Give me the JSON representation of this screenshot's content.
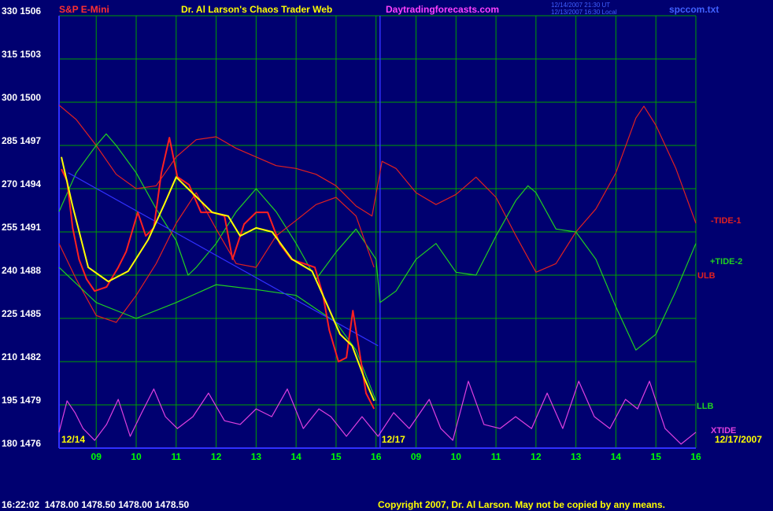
{
  "chart_data": {
    "type": "line",
    "title": "S&P E-Mini",
    "subtitle": "Dr. Al Larson's Chaos Trader Web",
    "site": "Daytradingforecasts.com",
    "timestamps": [
      "12/14/2007 21:30 UT",
      "12/13/2007 16:30 Local"
    ],
    "file": "spccom.txt",
    "status": "16:22:02  1478.00 1478.50 1478.00 1478.50",
    "copyright": "Copyright 2007, Dr. Al Larson. May not be copied by any means.",
    "date_labels": [
      {
        "value": 0.07,
        "label": "12/14"
      },
      {
        "value": 8.1,
        "label": "12/17"
      },
      {
        "value": 16,
        "label": "12/17/2007"
      }
    ],
    "xlim": [
      0.07,
      16
    ],
    "ylim": [
      180,
      330
    ],
    "grid": true,
    "xticks": [
      {
        "value": 1,
        "label": "09"
      },
      {
        "value": 2,
        "label": "10"
      },
      {
        "value": 3,
        "label": "11"
      },
      {
        "value": 4,
        "label": "12"
      },
      {
        "value": 5,
        "label": "13"
      },
      {
        "value": 6,
        "label": "14"
      },
      {
        "value": 7,
        "label": "15"
      },
      {
        "value": 8,
        "label": "16"
      },
      {
        "value": 9,
        "label": "09"
      },
      {
        "value": 10,
        "label": "10"
      },
      {
        "value": 11,
        "label": "11"
      },
      {
        "value": 12,
        "label": "12"
      },
      {
        "value": 13,
        "label": "13"
      },
      {
        "value": 14,
        "label": "14"
      },
      {
        "value": 15,
        "label": "15"
      },
      {
        "value": 16,
        "label": "16"
      }
    ],
    "yticks": [
      {
        "value": 180,
        "label": "180 1476"
      },
      {
        "value": 195,
        "label": "195 1479"
      },
      {
        "value": 210,
        "label": "210 1482"
      },
      {
        "value": 225,
        "label": "225 1485"
      },
      {
        "value": 240,
        "label": "240 1488"
      },
      {
        "value": 255,
        "label": "255 1491"
      },
      {
        "value": 270,
        "label": "270 1494"
      },
      {
        "value": 285,
        "label": "285 1497"
      },
      {
        "value": 300,
        "label": "300 1500"
      },
      {
        "value": 315,
        "label": "315 1503"
      },
      {
        "value": 330,
        "label": "330 1506"
      }
    ],
    "divider_x": 8.1,
    "series": [
      {
        "name": "-TIDE-1",
        "color": "#e02020",
        "x": [
          0.07,
          0.5,
          1,
          1.5,
          2,
          2.5,
          3,
          3.5,
          4,
          4.5,
          5,
          5.5,
          6,
          6.5,
          7,
          7.5,
          7.9,
          8.15,
          8.5,
          9,
          9.5,
          10,
          10.5,
          11,
          11.5,
          12,
          12.5,
          13,
          13.5,
          14,
          14.5,
          14.7,
          15,
          15.5,
          16
        ],
        "values": [
          299,
          294,
          285,
          275,
          270,
          271,
          281,
          287,
          288,
          284,
          281,
          278,
          277,
          275,
          271,
          264,
          260.5,
          279.5,
          277,
          268.6,
          264.5,
          268,
          274,
          267,
          253.6,
          241,
          244,
          255,
          263,
          275.5,
          294.5,
          298.6,
          292,
          277,
          258
        ]
      },
      {
        "name": "+TIDE-2",
        "color": "#20d020",
        "x": [
          0.07,
          0.5,
          1,
          1.25,
          1.5,
          2,
          2.5,
          3,
          3.3,
          3.5,
          4,
          4.5,
          5,
          5.5,
          6,
          6.5,
          7,
          7.5,
          8,
          8.1,
          8.5,
          9,
          9.5,
          10,
          10.5,
          11,
          11.5,
          11.8,
          12,
          12.5,
          13,
          13.5,
          14,
          14.5,
          15,
          15.5,
          16
        ],
        "values": [
          262,
          275.5,
          285,
          289,
          285,
          275.5,
          263,
          252,
          240,
          242.7,
          251,
          262,
          270,
          262,
          251,
          238.6,
          248,
          256,
          245.5,
          230.5,
          234.5,
          245.5,
          251,
          241,
          240,
          253.6,
          266,
          271,
          268.6,
          256,
          255,
          245.5,
          229,
          214,
          219.5,
          234.5,
          251
        ]
      },
      {
        "name": "ULB",
        "color": "#e02020",
        "x": [
          0.07,
          0.5,
          1,
          1.5,
          2,
          2.5,
          3,
          3.5,
          4,
          4.5,
          5,
          5.5,
          6,
          6.5,
          7,
          7.5,
          7.95
        ],
        "values": [
          251,
          238.6,
          226,
          223.6,
          233,
          244,
          258,
          268.6,
          256,
          244,
          242.7,
          253.6,
          259,
          264.5,
          267,
          260.5,
          242.7
        ]
      },
      {
        "name": "LLB",
        "color": "#20d020",
        "x": [
          0.07,
          1,
          2,
          3,
          4,
          5,
          6,
          7,
          7.5,
          8
        ],
        "values": [
          242.7,
          230.5,
          225,
          230.5,
          236.7,
          235,
          233,
          223.6,
          214,
          196.4
        ]
      },
      {
        "name": "XTIDE",
        "color": "#e040e0",
        "x": [
          0.07,
          0.27,
          0.47,
          0.67,
          0.96,
          1.26,
          1.55,
          1.85,
          2.14,
          2.44,
          2.73,
          3.03,
          3.42,
          3.81,
          4.21,
          4.6,
          5,
          5.39,
          5.78,
          6.18,
          6.57,
          6.87,
          7.26,
          7.65,
          8.05,
          8.44,
          8.83,
          9.33,
          9.62,
          9.92,
          10.31,
          10.7,
          11.1,
          11.49,
          11.89,
          12.28,
          12.67,
          13.07,
          13.46,
          13.85,
          14.24,
          14.54,
          14.84,
          15.23,
          15.63,
          16
        ],
        "values": [
          185.5,
          196.4,
          192.3,
          186.8,
          182.7,
          188.2,
          196.9,
          184.1,
          192.3,
          200.5,
          190.9,
          186.8,
          190.9,
          199.1,
          189.5,
          188.2,
          193.6,
          190.9,
          200.5,
          186.8,
          193.6,
          190.9,
          184.1,
          190.9,
          184.1,
          192.3,
          186.8,
          196.9,
          186.8,
          182.7,
          203.2,
          188.2,
          186.8,
          190.9,
          186.8,
          199.1,
          186.8,
          203.2,
          190.9,
          186.8,
          196.9,
          193.6,
          203.2,
          186.8,
          181.4,
          185.5
        ]
      },
      {
        "color": "#3030ff",
        "x": [
          0.3,
          8.05
        ],
        "values": [
          275.5,
          215.5
        ]
      },
      {
        "color": "#ff2020",
        "x": [
          0.13,
          0.27,
          0.41,
          0.57,
          0.76,
          0.96,
          1.26,
          1.55,
          1.75,
          2.04,
          2.24,
          2.44,
          2.63,
          2.83,
          3.03,
          3.32,
          3.62,
          3.91,
          4.21,
          4.41,
          4.7,
          5,
          5.29,
          5.59,
          5.88,
          6.18,
          6.47,
          6.67,
          6.83,
          7.06,
          7.26,
          7.42,
          7.56,
          7.75,
          7.95
        ],
        "values": [
          276.8,
          272.7,
          256.4,
          245.5,
          238.6,
          234.5,
          235.9,
          242.7,
          248.2,
          261.8,
          253.6,
          256.4,
          275.5,
          287.7,
          274.1,
          271.4,
          261.8,
          261.8,
          260.5,
          245.5,
          257.7,
          261.8,
          261.8,
          250.9,
          245.5,
          244.1,
          242.7,
          233.2,
          220.9,
          210,
          211.4,
          227.7,
          215.5,
          199.1,
          193.6
        ]
      },
      {
        "color": "#ffff00",
        "x": [
          0.13,
          0.4,
          0.8,
          1.3,
          1.8,
          2.3,
          2.7,
          3,
          3.4,
          3.9,
          4.3,
          4.6,
          5,
          5.4,
          5.9,
          6.4,
          6.8,
          7.1,
          7.4,
          7.7,
          7.95
        ],
        "values": [
          281,
          264.5,
          242.7,
          237.8,
          241.4,
          252.3,
          264.5,
          274,
          268.6,
          261.8,
          260.5,
          253.6,
          256.4,
          255,
          245.5,
          241.4,
          229,
          219.5,
          215.5,
          204.5,
          196.4
        ]
      }
    ]
  }
}
